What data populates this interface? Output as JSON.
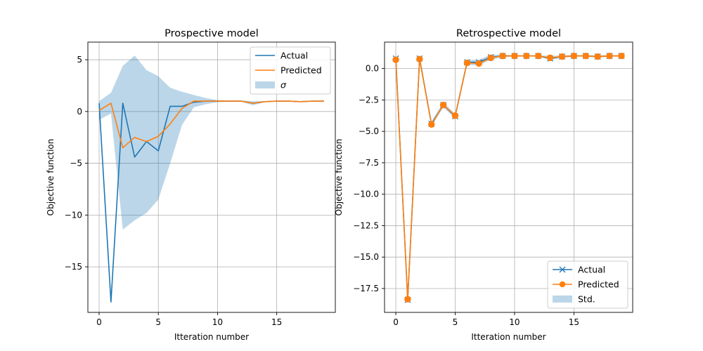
{
  "colors": {
    "actual": "#1f77b4",
    "predicted": "#ff7f0e",
    "band": "#1f77b4",
    "grid": "#b0b0b0"
  },
  "chart_data": [
    {
      "type": "line",
      "title": "Prospective model",
      "xlabel": "Itteration number",
      "ylabel": "Objective function",
      "xlim": [
        -0.95,
        19.95
      ],
      "ylim": [
        -19.4,
        6.7
      ],
      "xticks": [
        0,
        5,
        10,
        15
      ],
      "yticks": [
        5,
        0,
        -5,
        -10,
        -15
      ],
      "grid": true,
      "legend_position": "top-right",
      "legend": [
        "Actual",
        "Predicted",
        "σ"
      ],
      "x": [
        0,
        1,
        2,
        3,
        4,
        5,
        6,
        7,
        8,
        9,
        10,
        11,
        12,
        13,
        14,
        15,
        16,
        17,
        18,
        19
      ],
      "series": [
        {
          "name": "Actual",
          "marker": "none",
          "values": [
            0.8,
            -18.4,
            0.8,
            -4.4,
            -2.9,
            -3.8,
            0.5,
            0.5,
            0.9,
            1.0,
            1.0,
            1.0,
            1.0,
            0.8,
            0.95,
            1.0,
            1.0,
            0.95,
            1.0,
            1.0
          ]
        },
        {
          "name": "Predicted",
          "marker": "none",
          "values": [
            0.1,
            0.8,
            -3.5,
            -2.5,
            -2.9,
            -2.4,
            -1.2,
            0.3,
            1.0,
            1.0,
            1.0,
            1.0,
            1.0,
            0.8,
            0.95,
            1.0,
            1.0,
            0.95,
            1.0,
            1.0
          ]
        }
      ],
      "band": {
        "name": "σ",
        "upper": [
          1.0,
          1.8,
          4.4,
          5.4,
          4.0,
          3.4,
          2.3,
          1.9,
          1.6,
          1.3,
          1.1,
          1.05,
          1.05,
          1.0,
          1.0,
          1.0,
          1.0,
          1.0,
          1.0,
          1.0
        ],
        "lower": [
          -0.8,
          -0.2,
          -11.4,
          -10.5,
          -9.8,
          -8.5,
          -5.0,
          -1.3,
          0.4,
          0.7,
          0.9,
          0.95,
          0.95,
          0.6,
          0.9,
          0.95,
          0.95,
          0.9,
          0.95,
          0.95
        ]
      }
    },
    {
      "type": "line",
      "title": "Retrospective model",
      "xlabel": "Itteration number",
      "ylabel": "Objective function",
      "xlim": [
        -0.95,
        19.95
      ],
      "ylim": [
        -19.4,
        2.1
      ],
      "xticks": [
        0,
        5,
        10,
        15
      ],
      "yticks": [
        0.0,
        -2.5,
        -5.0,
        -7.5,
        -10.0,
        -12.5,
        -15.0,
        -17.5
      ],
      "ytick_labels": [
        "0.0",
        "−2.5",
        "−5.0",
        "−7.5",
        "−10.0",
        "−12.5",
        "−15.0",
        "−17.5"
      ],
      "grid": true,
      "legend_position": "bottom-right",
      "legend": [
        "Actual",
        "Predicted",
        "Std."
      ],
      "x": [
        0,
        1,
        2,
        3,
        4,
        5,
        6,
        7,
        8,
        9,
        10,
        11,
        12,
        13,
        14,
        15,
        16,
        17,
        18,
        19
      ],
      "series": [
        {
          "name": "Actual",
          "marker": "x",
          "values": [
            0.8,
            -18.4,
            0.8,
            -4.4,
            -2.9,
            -3.8,
            0.5,
            0.5,
            0.9,
            1.0,
            1.0,
            1.0,
            1.0,
            0.8,
            0.95,
            1.0,
            1.0,
            0.95,
            1.0,
            1.0
          ]
        },
        {
          "name": "Predicted",
          "marker": "o",
          "values": [
            0.7,
            -18.35,
            0.75,
            -4.45,
            -2.9,
            -3.75,
            0.45,
            0.4,
            0.85,
            1.0,
            1.0,
            1.0,
            1.0,
            0.85,
            0.95,
            1.0,
            1.0,
            0.95,
            1.0,
            1.0
          ]
        }
      ],
      "band": {
        "name": "Std.",
        "upper": [
          0.9,
          -18.2,
          0.95,
          -4.2,
          -2.7,
          -3.6,
          0.7,
          0.7,
          1.1,
          1.1,
          1.05,
          1.05,
          1.05,
          1.0,
          1.05,
          1.05,
          1.05,
          1.05,
          1.05,
          1.05
        ],
        "lower": [
          0.6,
          -18.5,
          0.6,
          -4.6,
          -3.1,
          -3.95,
          0.3,
          0.25,
          0.7,
          0.9,
          0.95,
          0.95,
          0.95,
          0.7,
          0.85,
          0.95,
          0.95,
          0.85,
          0.95,
          0.95
        ]
      }
    }
  ]
}
